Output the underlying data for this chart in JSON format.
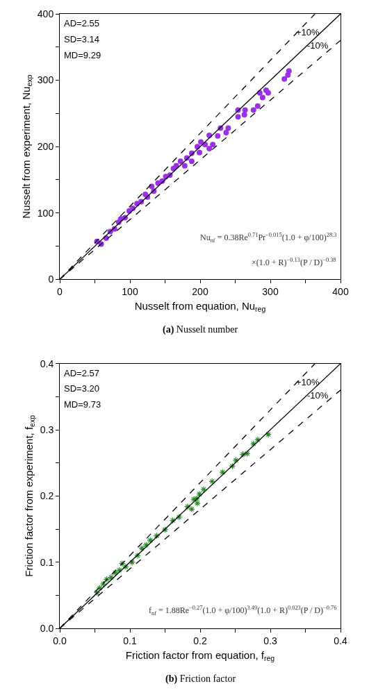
{
  "chart_data": [
    {
      "type": "scatter",
      "xlabel": "Nusselt from equation, Nu$_{reg}$",
      "ylabel": "Nusselt from experiment, Nu$_{exp}$",
      "xlim": [
        0,
        400
      ],
      "ylim": [
        0,
        400
      ],
      "xticks": [
        0,
        {
          "value": 50,
          "label": null
        },
        100,
        {
          "value": 150,
          "label": null
        },
        200,
        {
          "value": 250,
          "label": null
        },
        300,
        {
          "value": 350,
          "label": null
        },
        400
      ],
      "yticks": [
        0,
        {
          "value": 50,
          "label": null
        },
        100,
        {
          "value": 150,
          "label": null
        },
        200,
        {
          "value": 250,
          "label": null
        },
        300,
        {
          "value": 350,
          "label": null
        },
        400
      ],
      "grid": false,
      "legend": false,
      "series": [
        {
          "type": "scatter",
          "marker": "circle",
          "color": "#9b30e8",
          "x": [
            53,
            59,
            66,
            72,
            78,
            84,
            87,
            93,
            99,
            104,
            110,
            116,
            122,
            125,
            131,
            134,
            140,
            146,
            151,
            157,
            162,
            166,
            172,
            178,
            181,
            188,
            188,
            196,
            199,
            201,
            207,
            213,
            213,
            218,
            225,
            229,
            237,
            240,
            254,
            254,
            263,
            264,
            276,
            282,
            289,
            285,
            297,
            294,
            320,
            325,
            326.5
          ],
          "values": [
            57,
            53,
            62,
            72,
            76,
            86,
            91,
            93,
            103,
            107,
            114,
            117,
            128,
            124,
            140,
            133,
            145,
            148,
            155,
            157,
            167,
            171,
            178,
            171,
            183,
            190,
            178,
            200,
            191,
            207,
            203,
            217,
            197,
            203,
            216,
            228,
            221,
            228,
            245,
            255,
            248,
            255,
            255,
            261,
            274,
            281,
            281,
            285,
            302,
            308,
            314
          ]
        },
        {
          "type": "line",
          "line_style": "solid",
          "marker": "none",
          "color": "#000000",
          "x": [
            0,
            400
          ],
          "values": [
            0,
            400
          ]
        },
        {
          "type": "line",
          "line_style": "dashed",
          "marker": "none",
          "color": "#000000",
          "x": [
            0,
            363.6
          ],
          "values": [
            0,
            400
          ]
        },
        {
          "type": "line",
          "line_style": "dashed",
          "marker": "none",
          "color": "#000000",
          "x": [
            0,
            400
          ],
          "values": [
            0,
            360
          ]
        }
      ],
      "annotations": [
        "AD=2.55",
        "SD=3.14",
        "MD=9.29",
        {
          "text": "+10%",
          "x": 372,
          "y": 372
        },
        {
          "text": "-10%",
          "x": 385,
          "y": 352
        },
        "Nu$_{nf}$ = 0.38Re$^{0.71}$Pr$^{−0.015}$(1.0 + φ/100)$^{28.3}$",
        "×(1.0 + R)$^{−0.13}$(P / D)$^{−0.38}$",
        "(a) Nusselt number"
      ]
    },
    {
      "type": "scatter",
      "xlabel": "Friction factor from equation, f$_{reg}$",
      "ylabel": "Friction factor from experiment, f$_{exp}$",
      "xlim": [
        0,
        0.4
      ],
      "ylim": [
        0,
        0.4
      ],
      "xticks": [
        {
          "value": 0,
          "label": "0.0"
        },
        {
          "value": 0.05,
          "label": null
        },
        0.1,
        {
          "value": 0.15,
          "label": null
        },
        0.2,
        {
          "value": 0.25,
          "label": null
        },
        0.3,
        {
          "value": 0.35,
          "label": null
        },
        0.4
      ],
      "yticks": [
        {
          "value": 0,
          "label": "0.0"
        },
        {
          "value": 0.05,
          "label": null
        },
        0.1,
        {
          "value": 0.15,
          "label": null
        },
        0.2,
        {
          "value": 0.25,
          "label": null
        },
        0.3,
        {
          "value": 0.35,
          "label": null
        },
        0.4
      ],
      "grid": false,
      "legend": false,
      "series": [
        {
          "type": "scatter",
          "marker": "cross",
          "color": "#1e8c1e",
          "x": [
            0.297,
            0.282,
            0.276,
            0.267,
            0.261,
            0.251,
            0.246,
            0.232,
            0.217,
            0.205,
            0.199,
            0.195,
            0.191,
            0.188,
            0.182,
            0.196,
            0.17,
            0.161,
            0.15,
            0.138,
            0.129,
            0.123,
            0.117,
            0.111,
            0.103,
            0.094,
            0.089,
            0.085,
            0.079,
            0.073,
            0.067,
            0.062,
            0.057,
            0.053
          ],
          "values": [
            0.293,
            0.285,
            0.279,
            0.264,
            0.263,
            0.254,
            0.245,
            0.236,
            0.222,
            0.21,
            0.203,
            0.196,
            0.195,
            0.18,
            0.184,
            0.189,
            0.168,
            0.163,
            0.149,
            0.14,
            0.133,
            0.126,
            0.121,
            0.11,
            0.1,
            0.093,
            0.098,
            0.088,
            0.084,
            0.077,
            0.074,
            0.067,
            0.061,
            0.054
          ]
        },
        {
          "type": "line",
          "line_style": "solid",
          "marker": "none",
          "color": "#000000",
          "x": [
            0,
            0.4
          ],
          "values": [
            0,
            0.4
          ]
        },
        {
          "type": "line",
          "line_style": "dashed",
          "marker": "none",
          "color": "#000000",
          "x": [
            0,
            0.3636
          ],
          "values": [
            0,
            0.4
          ]
        },
        {
          "type": "line",
          "line_style": "dashed",
          "marker": "none",
          "color": "#000000",
          "x": [
            0,
            0.4
          ],
          "values": [
            0,
            0.36
          ]
        }
      ],
      "annotations": [
        "AD=2.57",
        "SD=3.20",
        "MD=9.73",
        {
          "text": "+10%",
          "x": 0.372,
          "y": 0.372
        },
        {
          "text": "-10%",
          "x": 0.385,
          "y": 0.352
        },
        "f$_{nf}$ = 1.88Re$^{−0.27}$(1.0 + φ/100)$^{3.49}$(1.0 + R)$^{0.023}$(P / D)$^{−0.76}$",
        "(b) Friction factor"
      ]
    }
  ]
}
